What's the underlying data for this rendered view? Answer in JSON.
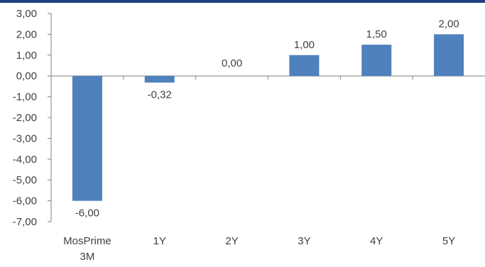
{
  "colors": {
    "bar": "#4f81bd",
    "axis": "#808080",
    "text": "#404040",
    "top_rule": "#1f3f7f"
  },
  "chart_data": {
    "type": "bar",
    "categories": [
      [
        "MosPrime",
        "3M"
      ],
      [
        "1Y"
      ],
      [
        "2Y"
      ],
      [
        "3Y"
      ],
      [
        "4Y"
      ],
      [
        "5Y"
      ]
    ],
    "values": [
      -6.0,
      -0.32,
      0.0,
      1.0,
      1.5,
      2.0
    ],
    "data_labels": [
      "-6,00",
      "-0,32",
      "0,00",
      "1,00",
      "1,50",
      "2,00"
    ],
    "y_ticks": [
      "3,00",
      "2,00",
      "1,00",
      "0,00",
      "-1,00",
      "-2,00",
      "-3,00",
      "-4,00",
      "-5,00",
      "-6,00",
      "-7,00"
    ],
    "ylim": [
      -7,
      3
    ],
    "title": "",
    "xlabel": "",
    "ylabel": "",
    "grid": false,
    "legend": "none"
  }
}
